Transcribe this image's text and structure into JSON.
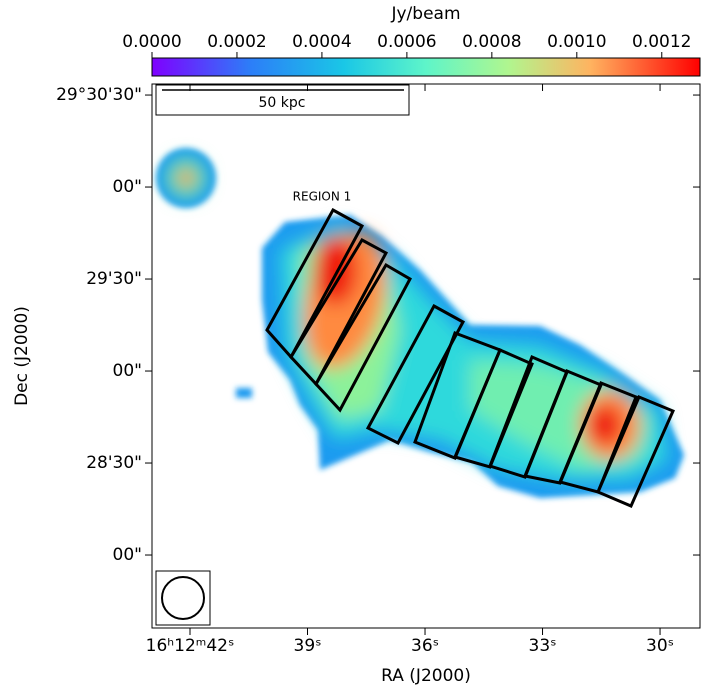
{
  "chart_data": {
    "type": "image",
    "colorbar_label": "Jy/beam",
    "colorbar_lim": [
      0,
      0.00129
    ],
    "colorbar_ticks": [
      {
        "value": 0,
        "label": "0.0000"
      },
      {
        "value": 0.0002,
        "label": "0.0002"
      },
      {
        "value": 0.0004,
        "label": "0.0004"
      },
      {
        "value": 0.0006,
        "label": "0.0006"
      },
      {
        "value": 0.0008,
        "label": "0.0008"
      },
      {
        "value": 0.001,
        "label": "0.0010"
      },
      {
        "value": 0.0012,
        "label": "0.0012"
      }
    ],
    "xlabel": "RA (J2000)",
    "ylabel": "Dec (J2000)",
    "xlim": [
      42.97,
      28.98
    ],
    "xticks": [
      {
        "value": 42,
        "label": "16ʰ12ᵐ42ˢ"
      },
      {
        "value": 39,
        "label": "39ˢ"
      },
      {
        "value": 36,
        "label": "36ˢ"
      },
      {
        "value": 33,
        "label": "33ˢ"
      },
      {
        "value": 30,
        "label": "30ˢ"
      }
    ],
    "ylim": [
      1656.2,
      1833.6
    ],
    "yticks": [
      {
        "value": 1830,
        "label": "29°30'30\""
      },
      {
        "value": 1800,
        "label": "00\""
      },
      {
        "value": 1770,
        "label": "29'30\""
      },
      {
        "value": 1740,
        "label": "00\""
      },
      {
        "value": 1710,
        "label": "28'30\""
      },
      {
        "value": 1680,
        "label": "00\""
      }
    ],
    "scalebar_label": "50 kpc",
    "annotation": "REGION 1"
  }
}
